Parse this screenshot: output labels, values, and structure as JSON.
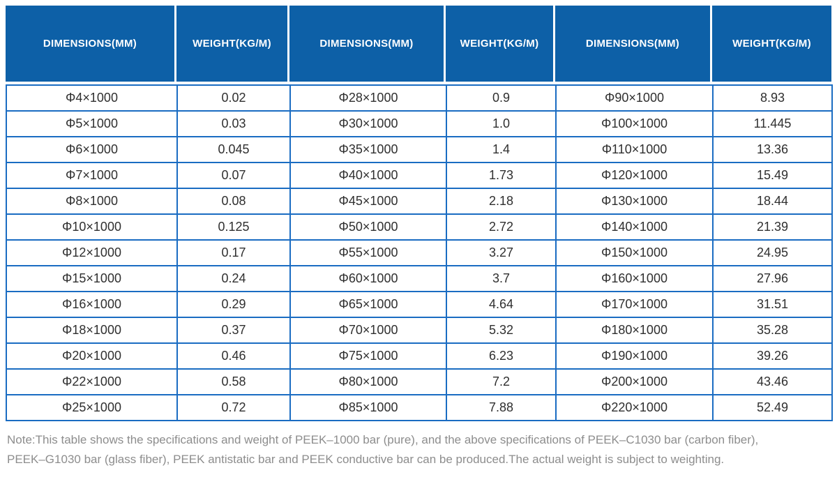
{
  "table": {
    "columns": [
      "DIMENSIONS(MM)",
      "WEIGHT(KG/M)",
      "DIMENSIONS(MM)",
      "WEIGHT(KG/M)",
      "DIMENSIONS(MM)",
      "WEIGHT(KG/M)"
    ],
    "rows": [
      [
        "Φ4×1000",
        "0.02",
        "Φ28×1000",
        "0.9",
        "Φ90×1000",
        "8.93"
      ],
      [
        "Φ5×1000",
        "0.03",
        "Φ30×1000",
        "1.0",
        "Φ100×1000",
        "11.445"
      ],
      [
        "Φ6×1000",
        "0.045",
        "Φ35×1000",
        "1.4",
        "Φ110×1000",
        "13.36"
      ],
      [
        "Φ7×1000",
        "0.07",
        "Φ40×1000",
        "1.73",
        "Φ120×1000",
        "15.49"
      ],
      [
        "Φ8×1000",
        "0.08",
        "Φ45×1000",
        "2.18",
        "Φ130×1000",
        "18.44"
      ],
      [
        "Φ10×1000",
        "0.125",
        "Φ50×1000",
        "2.72",
        "Φ140×1000",
        "21.39"
      ],
      [
        "Φ12×1000",
        "0.17",
        "Φ55×1000",
        "3.27",
        "Φ150×1000",
        "24.95"
      ],
      [
        "Φ15×1000",
        "0.24",
        "Φ60×1000",
        "3.7",
        "Φ160×1000",
        "27.96"
      ],
      [
        "Φ16×1000",
        "0.29",
        "Φ65×1000",
        "4.64",
        "Φ170×1000",
        "31.51"
      ],
      [
        "Φ18×1000",
        "0.37",
        "Φ70×1000",
        "5.32",
        "Φ180×1000",
        "35.28"
      ],
      [
        "Φ20×1000",
        "0.46",
        "Φ75×1000",
        "6.23",
        "Φ190×1000",
        "39.26"
      ],
      [
        "Φ22×1000",
        "0.58",
        "Φ80×1000",
        "7.2",
        "Φ200×1000",
        "43.46"
      ],
      [
        "Φ25×1000",
        "0.72",
        "Φ85×1000",
        "7.88",
        "Φ220×1000",
        "52.49"
      ]
    ]
  },
  "note": {
    "line1": "Note:This table shows the specifications and weight of PEEK–1000 bar (pure), and the above specifications of PEEK–C1030 bar (carbon fiber),",
    "line2": "PEEK–G1030 bar (glass fiber), PEEK antistatic bar and PEEK conductive bar can be produced.The actual weight is subject to weighting."
  },
  "colors": {
    "header_bg": "#0d60a7",
    "table_border": "#1a6cc2",
    "cell_text": "#2f2f2f",
    "note_text": "#8d8d8d"
  }
}
